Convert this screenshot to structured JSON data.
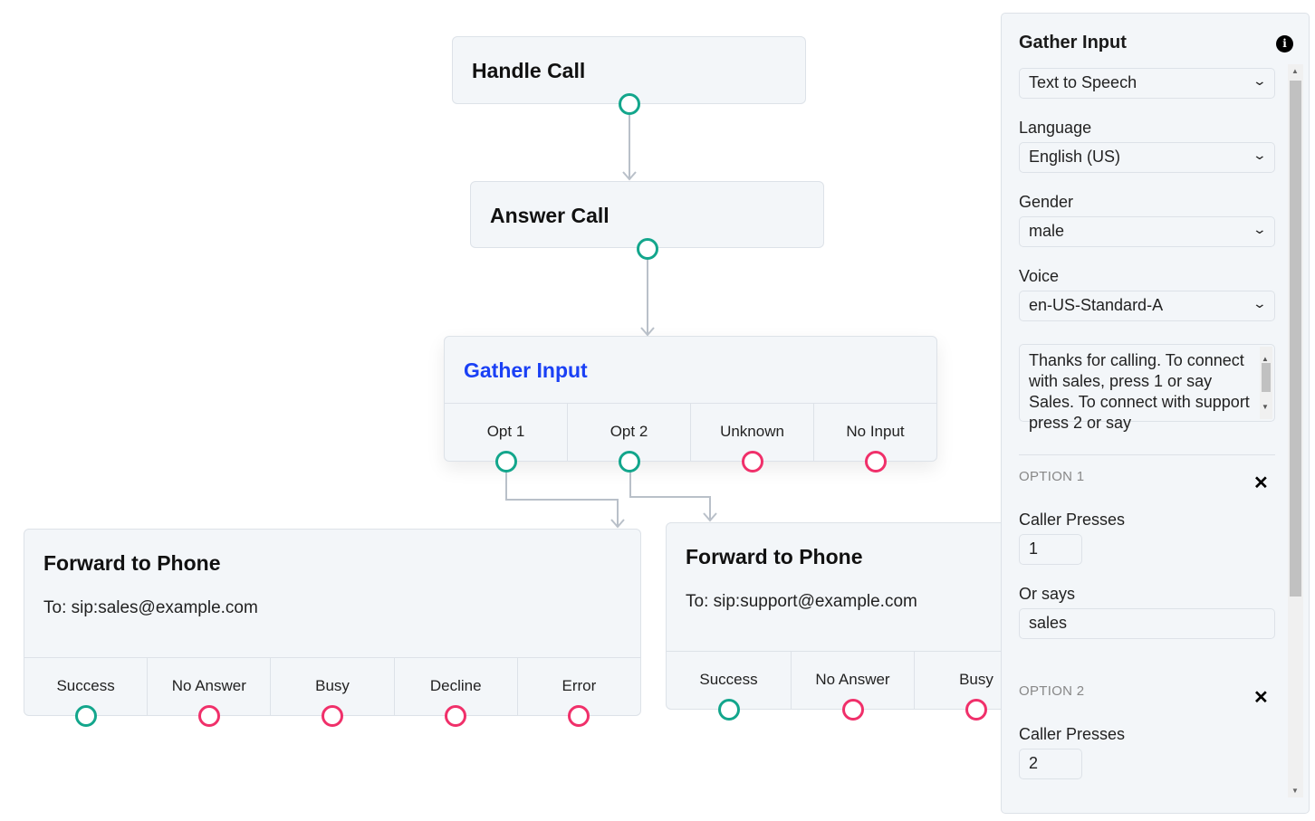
{
  "nodes": {
    "handle_call": {
      "title": "Handle Call"
    },
    "answer_call": {
      "title": "Answer Call"
    },
    "gather_input": {
      "title": "Gather Input",
      "title_color": "#1a40f5",
      "outputs": [
        "Opt 1",
        "Opt 2",
        "Unknown",
        "No Input"
      ]
    },
    "forward_sales": {
      "title": "Forward to Phone",
      "to": "To: sip:sales@example.com",
      "outputs": [
        "Success",
        "No Answer",
        "Busy",
        "Decline",
        "Error"
      ]
    },
    "forward_support": {
      "title": "Forward to Phone",
      "to": "To: sip:support@example.com",
      "outputs": [
        "Success",
        "No Answer",
        "Busy"
      ]
    }
  },
  "colors": {
    "success_port": "#13a68c",
    "failure_port": "#f0306a"
  },
  "panel": {
    "title": "Gather Input",
    "info_icon": "i",
    "mode": "Text to Speech",
    "language_label": "Language",
    "language": "English (US)",
    "gender_label": "Gender",
    "gender": "male",
    "voice_label": "Voice",
    "voice": "en-US-Standard-A",
    "prompt": "Thanks for calling. To connect with sales, press 1 or say Sales. To connect with support press 2 or say",
    "options": [
      {
        "header": "OPTION 1",
        "presses_label": "Caller Presses",
        "presses": "1",
        "says_label": "Or says",
        "says": "sales"
      },
      {
        "header": "OPTION 2",
        "presses_label": "Caller Presses",
        "presses": "2"
      }
    ],
    "remove_icon": "✕",
    "chevron": "⌄"
  }
}
